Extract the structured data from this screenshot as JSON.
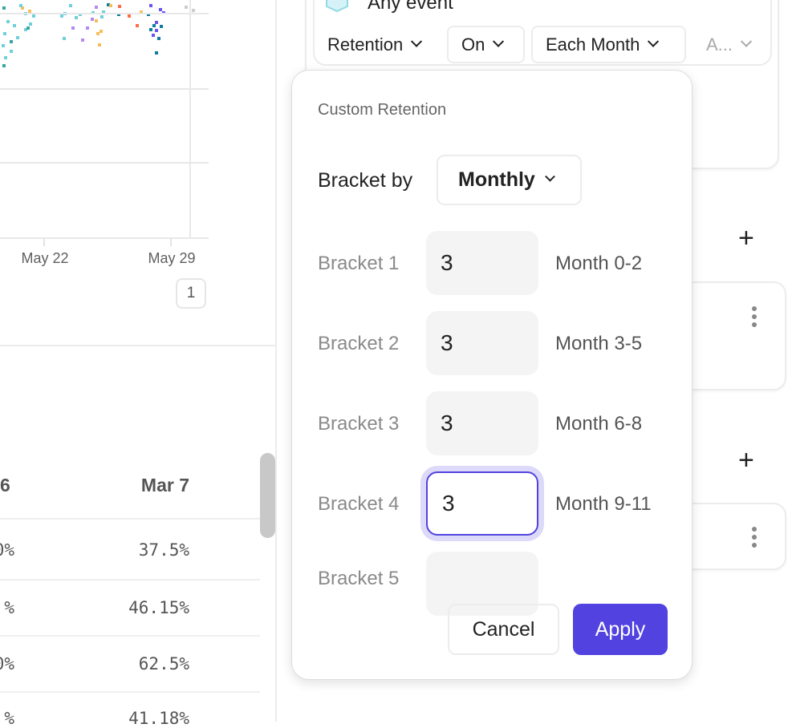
{
  "chart": {
    "x_tick_labels": [
      "May 22",
      "May 29"
    ],
    "page": "1",
    "colors": [
      "#6fd0dc",
      "#f8bd5a",
      "#3aa6a0",
      "#b48af0",
      "#0f7d9e",
      "#6b55f0",
      "#ff6b47"
    ]
  },
  "table": {
    "headers": [
      "6",
      "Mar 7"
    ],
    "rows": [
      [
        "0%",
        "37.5%"
      ],
      [
        "%",
        "46.15%"
      ],
      [
        "0%",
        "62.5%"
      ],
      [
        "%",
        "41.18%"
      ]
    ]
  },
  "query": {
    "event_label": "Any event",
    "dropdowns": [
      "Retention",
      "On",
      "Each Month",
      "A..."
    ]
  },
  "popover": {
    "title": "Custom Retention",
    "bracket_by_label": "Bracket by",
    "bracket_by_value": "Monthly",
    "brackets": [
      {
        "label": "Bracket 1",
        "value": "3",
        "range": "Month 0-2"
      },
      {
        "label": "Bracket 2",
        "value": "3",
        "range": "Month 3-5"
      },
      {
        "label": "Bracket 3",
        "value": "3",
        "range": "Month 6-8"
      },
      {
        "label": "Bracket 4",
        "value": "3",
        "range": "Month 9-11"
      },
      {
        "label": "Bracket 5",
        "value": "",
        "range": ""
      }
    ],
    "cancel": "Cancel",
    "apply": "Apply",
    "accent": "#5243e0"
  }
}
